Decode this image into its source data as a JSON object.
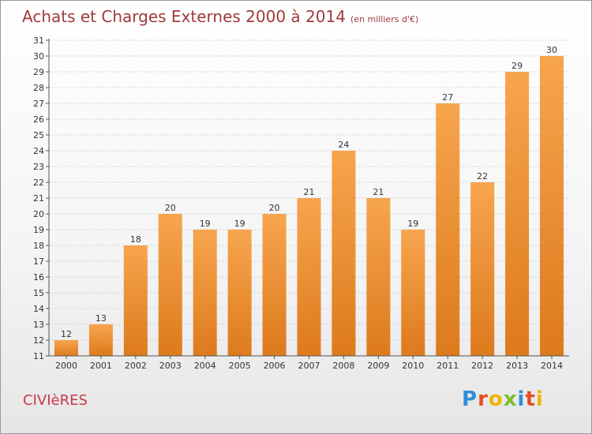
{
  "header": {
    "title": "Achats et Charges Externes 2000 à 2014",
    "unit_note": "(en milliers d'€)"
  },
  "footer": {
    "commune": "CIVIèRES",
    "logo_text": "Proxiti"
  },
  "colors": {
    "bar_light": "#f7a54e",
    "bar_dark": "#dd7a1c",
    "title": "#a03a3a",
    "commune": "#c8394a",
    "logo_letters": [
      "#2f8fd8",
      "#e44d26",
      "#f0b400",
      "#7bbf2f",
      "#2f8fd8",
      "#e44d26",
      "#f0b400"
    ]
  },
  "chart_data": {
    "type": "bar",
    "title": "Achats et Charges Externes 2000 à 2014",
    "xlabel": "",
    "ylabel": "",
    "categories": [
      "2000",
      "2001",
      "2002",
      "2003",
      "2004",
      "2005",
      "2006",
      "2007",
      "2008",
      "2009",
      "2010",
      "2011",
      "2012",
      "2013",
      "2014"
    ],
    "values": [
      12,
      13,
      18,
      20,
      19,
      19,
      20,
      21,
      24,
      21,
      19,
      27,
      22,
      29,
      30
    ],
    "ylim": [
      11,
      31
    ],
    "yticks": [
      11,
      12,
      13,
      14,
      15,
      16,
      17,
      18,
      19,
      20,
      21,
      22,
      23,
      24,
      25,
      26,
      27,
      28,
      29,
      30,
      31
    ],
    "grid": true,
    "legend": "none",
    "data_labels": true
  }
}
